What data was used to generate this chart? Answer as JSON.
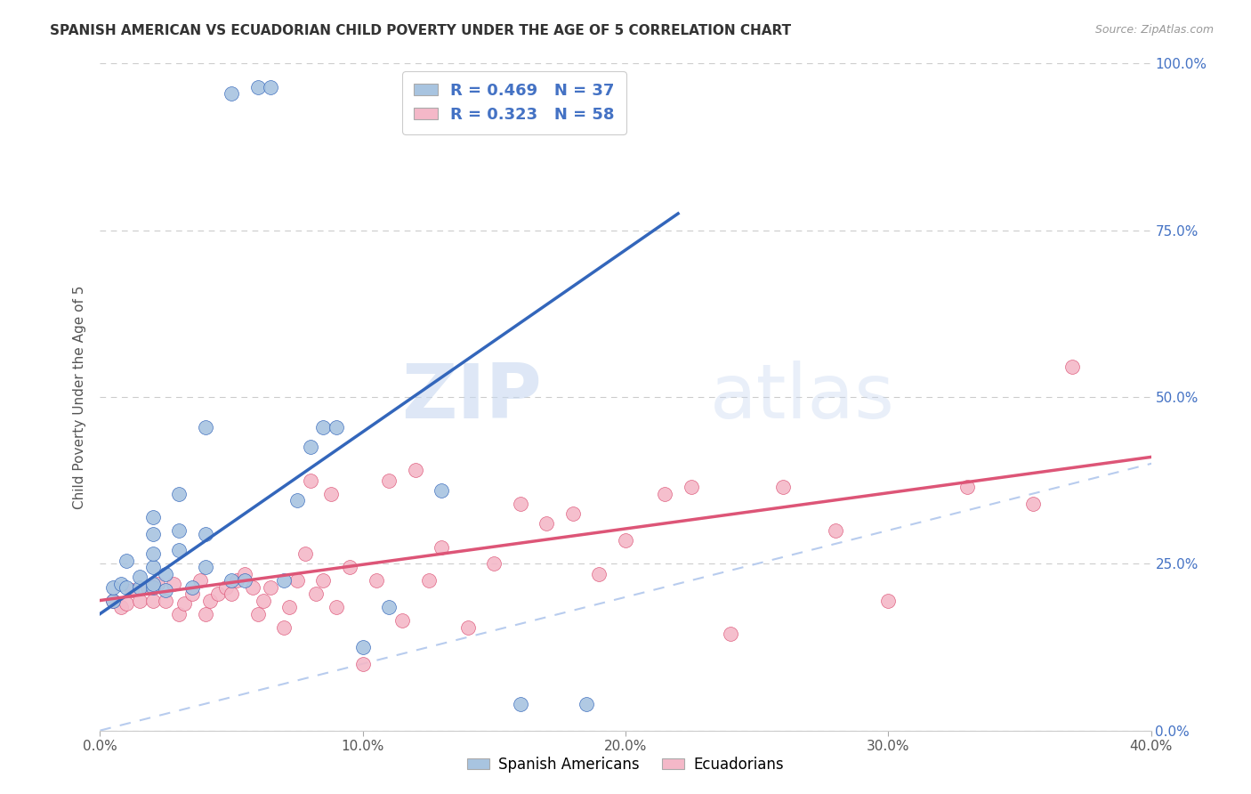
{
  "title": "SPANISH AMERICAN VS ECUADORIAN CHILD POVERTY UNDER THE AGE OF 5 CORRELATION CHART",
  "source": "Source: ZipAtlas.com",
  "ylabel": "Child Poverty Under the Age of 5",
  "xlabel_ticks": [
    "0.0%",
    "10.0%",
    "20.0%",
    "30.0%",
    "40.0%"
  ],
  "xlabel_vals": [
    0.0,
    0.1,
    0.2,
    0.3,
    0.4
  ],
  "ylabel_ticks": [
    "0.0%",
    "25.0%",
    "50.0%",
    "75.0%",
    "100.0%"
  ],
  "ylabel_vals": [
    0.0,
    0.25,
    0.5,
    0.75,
    1.0
  ],
  "xlim": [
    0.0,
    0.4
  ],
  "ylim": [
    0.0,
    1.0
  ],
  "spanish_R": 0.469,
  "spanish_N": 37,
  "ecuadorian_R": 0.323,
  "ecuadorian_N": 58,
  "spanish_color": "#a8c4e0",
  "ecuadorian_color": "#f4b8c8",
  "spanish_line_color": "#3366bb",
  "ecuadorian_line_color": "#dd5577",
  "diagonal_color": "#b8ccee",
  "background_color": "#ffffff",
  "watermark_zip": "ZIP",
  "watermark_atlas": "atlas",
  "legend_label_spanish": "Spanish Americans",
  "legend_label_ecuadorian": "Ecuadorians",
  "spanish_x": [
    0.005,
    0.005,
    0.008,
    0.01,
    0.01,
    0.015,
    0.015,
    0.02,
    0.02,
    0.02,
    0.02,
    0.02,
    0.02,
    0.025,
    0.025,
    0.03,
    0.03,
    0.03,
    0.035,
    0.04,
    0.04,
    0.04,
    0.05,
    0.05,
    0.055,
    0.06,
    0.065,
    0.07,
    0.075,
    0.08,
    0.085,
    0.09,
    0.1,
    0.11,
    0.13,
    0.16,
    0.185
  ],
  "spanish_y": [
    0.195,
    0.215,
    0.22,
    0.215,
    0.255,
    0.215,
    0.23,
    0.215,
    0.22,
    0.245,
    0.265,
    0.295,
    0.32,
    0.21,
    0.235,
    0.27,
    0.3,
    0.355,
    0.215,
    0.245,
    0.295,
    0.455,
    0.225,
    0.955,
    0.225,
    0.965,
    0.965,
    0.225,
    0.345,
    0.425,
    0.455,
    0.455,
    0.125,
    0.185,
    0.36,
    0.04,
    0.04
  ],
  "ecuadorian_x": [
    0.005,
    0.008,
    0.01,
    0.012,
    0.015,
    0.018,
    0.02,
    0.022,
    0.025,
    0.028,
    0.03,
    0.032,
    0.035,
    0.038,
    0.04,
    0.042,
    0.045,
    0.048,
    0.05,
    0.052,
    0.055,
    0.058,
    0.06,
    0.062,
    0.065,
    0.07,
    0.072,
    0.075,
    0.078,
    0.08,
    0.082,
    0.085,
    0.088,
    0.09,
    0.095,
    0.1,
    0.105,
    0.11,
    0.115,
    0.12,
    0.125,
    0.13,
    0.14,
    0.15,
    0.16,
    0.17,
    0.18,
    0.19,
    0.2,
    0.215,
    0.225,
    0.24,
    0.26,
    0.28,
    0.3,
    0.33,
    0.355,
    0.37
  ],
  "ecuadorian_y": [
    0.195,
    0.185,
    0.19,
    0.21,
    0.195,
    0.215,
    0.195,
    0.22,
    0.195,
    0.22,
    0.175,
    0.19,
    0.205,
    0.225,
    0.175,
    0.195,
    0.205,
    0.215,
    0.205,
    0.225,
    0.235,
    0.215,
    0.175,
    0.195,
    0.215,
    0.155,
    0.185,
    0.225,
    0.265,
    0.375,
    0.205,
    0.225,
    0.355,
    0.185,
    0.245,
    0.1,
    0.225,
    0.375,
    0.165,
    0.39,
    0.225,
    0.275,
    0.155,
    0.25,
    0.34,
    0.31,
    0.325,
    0.235,
    0.285,
    0.355,
    0.365,
    0.145,
    0.365,
    0.3,
    0.195,
    0.365,
    0.34,
    0.545
  ],
  "spanish_line_x0": 0.0,
  "spanish_line_y0": 0.175,
  "spanish_line_x1": 0.22,
  "spanish_line_y1": 0.775,
  "ecuadorian_line_x0": 0.0,
  "ecuadorian_line_y0": 0.195,
  "ecuadorian_line_x1": 0.4,
  "ecuadorian_line_y1": 0.41
}
